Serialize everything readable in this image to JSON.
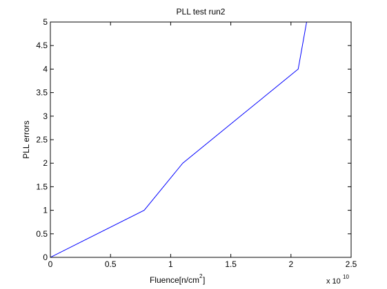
{
  "chart_data": {
    "type": "line",
    "title": "PLL test run2",
    "xlabel": "Fluence[n/cm",
    "xlabel_sup": "2",
    "xlabel_end": "]",
    "ylabel": "PLL errors",
    "x_exponent_base": "x 10",
    "x_exponent_power": "10",
    "xlim": [
      0,
      2.5
    ],
    "ylim": [
      0,
      5
    ],
    "xticks": [
      0,
      0.5,
      1,
      1.5,
      2,
      2.5
    ],
    "xtick_labels": [
      "0",
      "0.5",
      "1",
      "1.5",
      "2",
      "2.5"
    ],
    "yticks": [
      0,
      0.5,
      1,
      1.5,
      2,
      2.5,
      3,
      3.5,
      4,
      4.5,
      5
    ],
    "ytick_labels": [
      "0",
      "0.5",
      "1",
      "1.5",
      "2",
      "2.5",
      "3",
      "3.5",
      "4",
      "4.5",
      "5"
    ],
    "grid": false,
    "series": [
      {
        "color": "#0000ff",
        "x": [
          0,
          0.78,
          1.1,
          1.58,
          2.06,
          2.13
        ],
        "y": [
          0,
          1,
          2,
          3,
          4,
          5
        ]
      }
    ]
  }
}
